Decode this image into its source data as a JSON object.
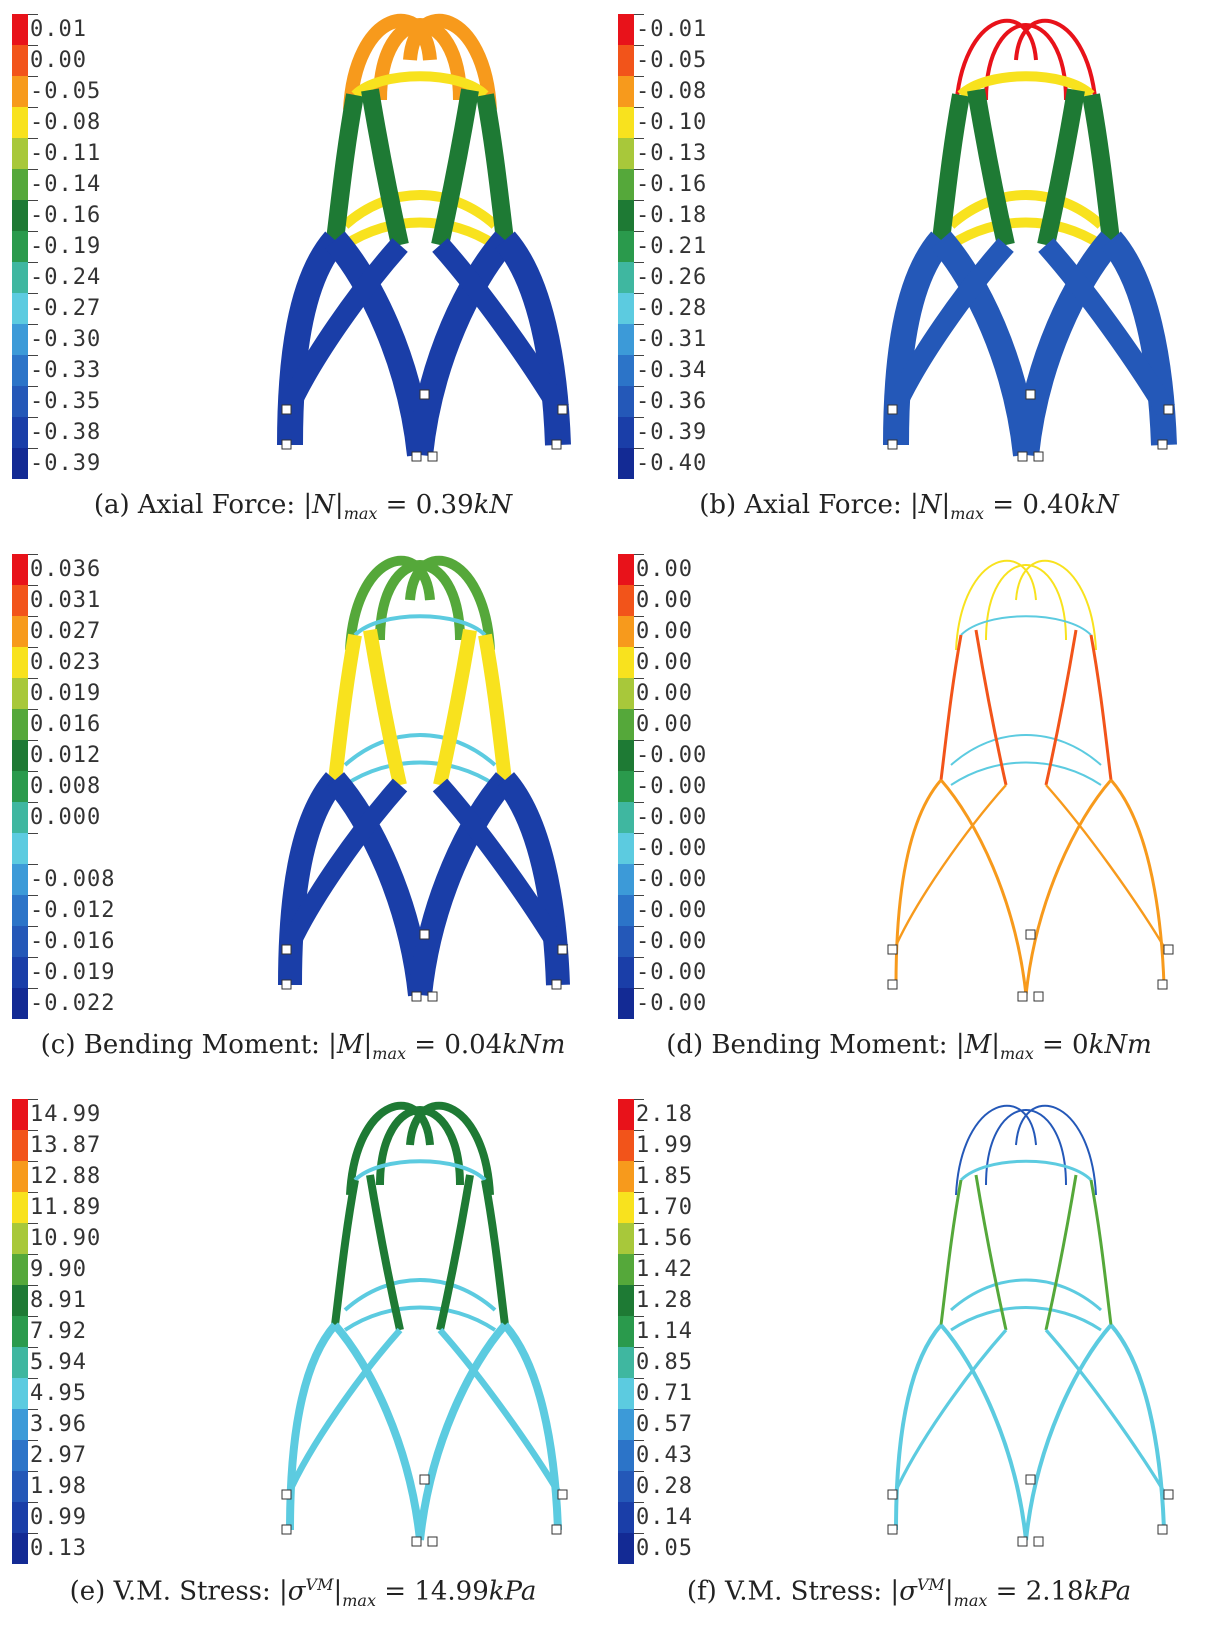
{
  "panels": [
    {
      "caption_prefix": "(a) Axial Force: ",
      "symbol": "N",
      "sub": "max",
      "sup": "",
      "value": "0.39",
      "unit": "kN",
      "legend": [
        "0.01",
        "0.00",
        "-0.05",
        "-0.08",
        "-0.11",
        "-0.14",
        "-0.16",
        "-0.19",
        "-0.24",
        "-0.27",
        "-0.30",
        "-0.33",
        "-0.35",
        "-0.38",
        "-0.39"
      ]
    },
    {
      "caption_prefix": "(b) Axial Force: ",
      "symbol": "N",
      "sub": "max",
      "sup": "",
      "value": "0.40",
      "unit": "kN",
      "legend": [
        "-0.01",
        "-0.05",
        "-0.08",
        "-0.10",
        "-0.13",
        "-0.16",
        "-0.18",
        "-0.21",
        "-0.26",
        "-0.28",
        "-0.31",
        "-0.34",
        "-0.36",
        "-0.39",
        "-0.40"
      ]
    },
    {
      "caption_prefix": "(c) Bending Moment: ",
      "symbol": "M",
      "sub": "max",
      "sup": "",
      "value": "0.04",
      "unit": "kNm",
      "legend": [
        "0.036",
        "0.031",
        "0.027",
        "0.023",
        "0.019",
        "0.016",
        "0.012",
        "0.008",
        "0.000",
        "",
        "-0.008",
        "-0.012",
        "-0.016",
        "-0.019",
        "-0.022"
      ]
    },
    {
      "caption_prefix": "(d) Bending Moment: ",
      "symbol": "M",
      "sub": "max",
      "sup": "",
      "value": "0",
      "unit": "kNm",
      "legend": [
        "0.00",
        "0.00",
        "0.00",
        "0.00",
        "0.00",
        "0.00",
        "-0.00",
        "-0.00",
        "-0.00",
        "-0.00",
        "-0.00",
        "-0.00",
        "-0.00",
        "-0.00",
        "-0.00"
      ]
    },
    {
      "caption_prefix": "(e) V.M. Stress: ",
      "symbol": "σ",
      "sub": "max",
      "sup": "VM",
      "value": "14.99",
      "unit": "kPa",
      "legend": [
        "14.99",
        "13.87",
        "12.88",
        "11.89",
        "10.90",
        "9.90",
        "8.91",
        "7.92",
        "5.94",
        "4.95",
        "3.96",
        "2.97",
        "1.98",
        "0.99",
        "0.13"
      ]
    },
    {
      "caption_prefix": "(f) V.M. Stress: ",
      "symbol": "σ",
      "sub": "max",
      "sup": "VM",
      "value": "2.18",
      "unit": "kPa",
      "legend": [
        "2.18",
        "1.99",
        "1.85",
        "1.70",
        "1.56",
        "1.42",
        "1.28",
        "1.14",
        "0.85",
        "0.71",
        "0.57",
        "0.43",
        "0.28",
        "0.14",
        "0.05"
      ]
    }
  ],
  "colormap": [
    "#e8121a",
    "#f2541a",
    "#f79a1c",
    "#f8e21e",
    "#a8c83a",
    "#55a83a",
    "#1e7a34",
    "#2a9a4c",
    "#3fb7a0",
    "#5ccbe0",
    "#3c9ad8",
    "#2c74c8",
    "#2458b8",
    "#1a3ea8",
    "#132a94"
  ]
}
